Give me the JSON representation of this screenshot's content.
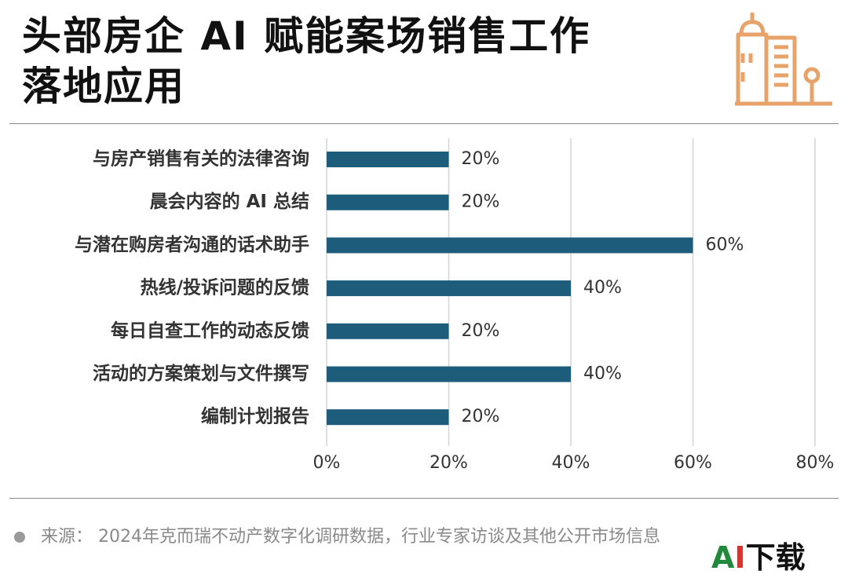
{
  "title_line1": "头部房企 AI 赋能案场销售工作",
  "title_line2": "落地应用",
  "logo_icon": "buildings-icon",
  "accent_color": "#1d5c7a",
  "logo_color": "#e8a36a",
  "chart_data": {
    "type": "bar",
    "orientation": "horizontal",
    "categories": [
      "与房产销售有关的法律咨询",
      "晨会内容的 AI 总结",
      "与潜在购房者沟通的话术助手",
      "热线/投诉问题的反馈",
      "每日自查工作的动态反馈",
      "活动的方案策划与文件撰写",
      "编制计划报告"
    ],
    "values": [
      20,
      20,
      60,
      40,
      20,
      40,
      20
    ],
    "data_labels": [
      "20%",
      "20%",
      "60%",
      "40%",
      "20%",
      "40%",
      "20%"
    ],
    "x_ticks": [
      0,
      20,
      40,
      60,
      80
    ],
    "x_tick_labels": [
      "0%",
      "20%",
      "40%",
      "60%",
      "80%"
    ],
    "xlim": [
      0,
      80
    ],
    "grid": "vertical",
    "bar_color": "#1d5c7a"
  },
  "source_text": "来源：  2024年克而瑞不动产数字化调研数据，行业专家访谈及其他公开市场信息",
  "badge": {
    "a": "A",
    "i": "I",
    "rest": "下载"
  }
}
